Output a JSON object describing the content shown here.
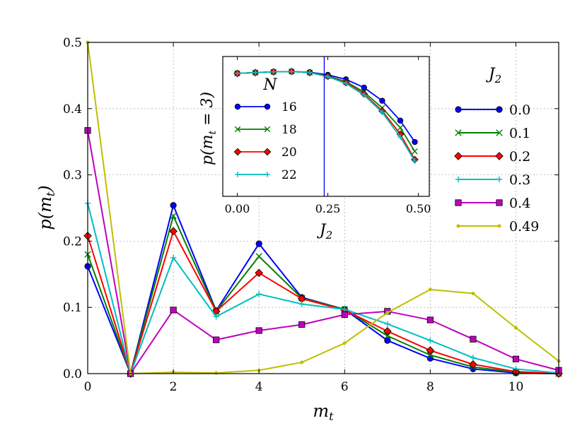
{
  "chart_data": [
    {
      "type": "line",
      "xlabel": "m_t",
      "ylabel": "p(m_t)",
      "xlim": [
        0,
        11
      ],
      "ylim": [
        0,
        0.5
      ],
      "xticks": [
        0,
        2,
        4,
        6,
        8,
        10
      ],
      "yticks": [
        0.0,
        0.1,
        0.2,
        0.3,
        0.4,
        0.5
      ],
      "xtick_labels": [
        "0",
        "2",
        "4",
        "6",
        "8",
        "10"
      ],
      "ytick_labels": [
        "0.0",
        "0.1",
        "0.2",
        "0.3",
        "0.4",
        "0.5"
      ],
      "grid": true,
      "legend_title": "J_2",
      "legend_position": "right",
      "x": [
        0,
        1,
        2,
        3,
        4,
        5,
        6,
        7,
        8,
        9,
        10,
        11
      ],
      "series": [
        {
          "name": "0.0",
          "color": "#0000ff",
          "marker": "circle",
          "values": [
            0.162,
            0.0,
            0.254,
            0.095,
            0.196,
            0.115,
            0.097,
            0.05,
            0.023,
            0.007,
            0.001,
            0.0
          ]
        },
        {
          "name": "0.1",
          "color": "#008000",
          "marker": "x",
          "values": [
            0.18,
            0.0,
            0.238,
            0.094,
            0.177,
            0.114,
            0.097,
            0.057,
            0.028,
            0.01,
            0.002,
            0.0
          ]
        },
        {
          "name": "0.2",
          "color": "#ff0000",
          "marker": "diamond",
          "values": [
            0.208,
            0.0,
            0.215,
            0.094,
            0.152,
            0.113,
            0.096,
            0.064,
            0.035,
            0.014,
            0.003,
            0.0
          ]
        },
        {
          "name": "0.3",
          "color": "#00bfbf",
          "marker": "plus",
          "values": [
            0.257,
            0.0,
            0.175,
            0.086,
            0.12,
            0.105,
            0.097,
            0.075,
            0.05,
            0.024,
            0.007,
            0.001
          ]
        },
        {
          "name": "0.4",
          "color": "#bf00bf",
          "marker": "square",
          "values": [
            0.367,
            0.0,
            0.096,
            0.051,
            0.065,
            0.074,
            0.089,
            0.094,
            0.081,
            0.052,
            0.022,
            0.005
          ]
        },
        {
          "name": "0.49",
          "color": "#bfbf00",
          "marker": "dot",
          "values": [
            0.5,
            0.0,
            0.002,
            0.001,
            0.005,
            0.017,
            0.046,
            0.092,
            0.127,
            0.121,
            0.069,
            0.019
          ]
        }
      ]
    },
    {
      "type": "line",
      "inset": true,
      "xlabel": "J_2",
      "ylabel": "p(m_t = 3)",
      "xlim": [
        -0.04,
        0.53
      ],
      "ylim": [
        0.0712,
        0.1085
      ],
      "xticks": [
        0.0,
        0.25,
        0.5
      ],
      "xtick_labels": [
        "0.00",
        "0.25",
        "0.50"
      ],
      "vline": 0.24,
      "vline_color": "#0000ff",
      "legend_title": "N",
      "legend_position": "left",
      "x": [
        0.0,
        0.05,
        0.1,
        0.15,
        0.2,
        0.25,
        0.3,
        0.35,
        0.4,
        0.45,
        0.49
      ],
      "series": [
        {
          "name": "16",
          "color": "#0000ff",
          "marker": "circle",
          "values": [
            0.104,
            0.1042,
            0.1044,
            0.1045,
            0.1043,
            0.1036,
            0.1024,
            0.1002,
            0.0967,
            0.0914,
            0.0857
          ]
        },
        {
          "name": "18",
          "color": "#008000",
          "marker": "x",
          "values": [
            0.104,
            0.1042,
            0.1044,
            0.1045,
            0.1042,
            0.1033,
            0.1018,
            0.099,
            0.0948,
            0.0895,
            0.0832
          ]
        },
        {
          "name": "20",
          "color": "#ff0000",
          "marker": "diamond",
          "values": [
            0.104,
            0.1042,
            0.1044,
            0.1045,
            0.1042,
            0.1032,
            0.1015,
            0.0985,
            0.094,
            0.0878,
            0.081
          ]
        },
        {
          "name": "22",
          "color": "#00bfbf",
          "marker": "plus",
          "values": [
            0.104,
            0.1042,
            0.1044,
            0.1045,
            0.1042,
            0.1031,
            0.1013,
            0.0982,
            0.0936,
            0.087,
            0.0806
          ]
        }
      ]
    }
  ]
}
